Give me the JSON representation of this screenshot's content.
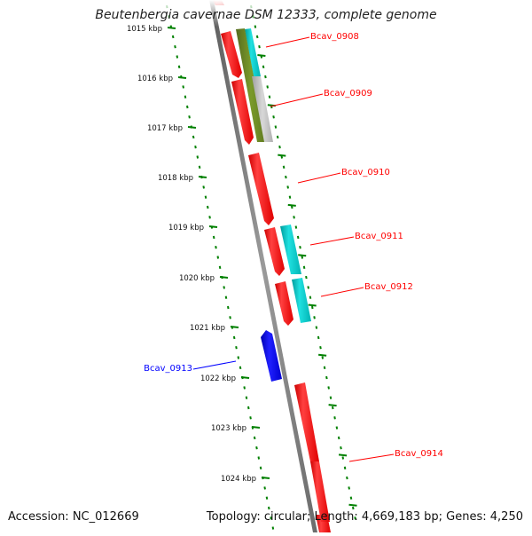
{
  "title": "Beutenbergia cavernae DSM 12333, complete genome",
  "footer": {
    "accession": "Accession: NC_012669",
    "summary": "Topology: circular; Length: 4,669,183 bp; Genes: 4,250"
  },
  "colors": {
    "forward_gene": "#ff0000",
    "reverse_gene": "#0000ff",
    "cds_feature": "#00c8c8",
    "olive_feature": "#6b8e23",
    "gray_feature": "#b4b4b4",
    "scale_ticks": "#008000",
    "genome_line": "#808080"
  },
  "scale": {
    "ticks": [
      {
        "kbp": 1015,
        "label": "1015 kbp"
      },
      {
        "kbp": 1016,
        "label": "1016 kbp"
      },
      {
        "kbp": 1017,
        "label": "1017 kbp"
      },
      {
        "kbp": 1018,
        "label": "1018 kbp"
      },
      {
        "kbp": 1019,
        "label": "1019 kbp"
      },
      {
        "kbp": 1020,
        "label": "1020 kbp"
      },
      {
        "kbp": 1021,
        "label": "1021 kbp"
      },
      {
        "kbp": 1022,
        "label": "1022 kbp"
      },
      {
        "kbp": 1023,
        "label": "1023 kbp"
      },
      {
        "kbp": 1024,
        "label": "1024 kbp"
      }
    ]
  },
  "genes": [
    {
      "name": "Bcav_0908",
      "strand": "+",
      "color": "red"
    },
    {
      "name": "Bcav_0909",
      "strand": "+",
      "color": "red"
    },
    {
      "name": "Bcav_0910",
      "strand": "+",
      "color": "red"
    },
    {
      "name": "Bcav_0911",
      "strand": "+",
      "color": "red"
    },
    {
      "name": "Bcav_0912",
      "strand": "+",
      "color": "red"
    },
    {
      "name": "Bcav_0913",
      "strand": "-",
      "color": "blue"
    },
    {
      "name": "Bcav_0914",
      "strand": "+",
      "color": "red"
    }
  ]
}
